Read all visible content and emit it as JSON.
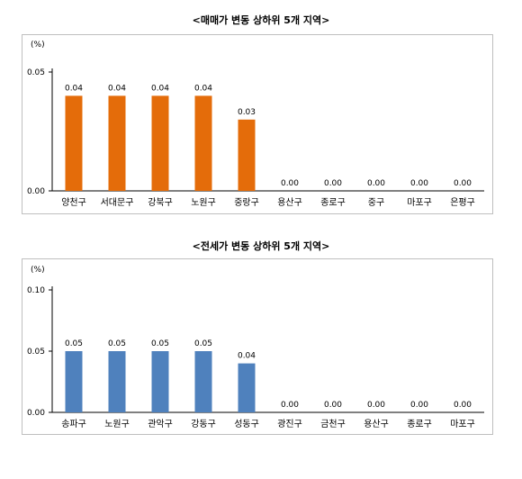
{
  "chart_data": [
    {
      "type": "bar",
      "title": "<매매가 변동 상하위 5개 지역>",
      "ylabel": "(%)",
      "ylim": [
        0,
        0.05
      ],
      "yticks": [
        "0.00",
        "0.05"
      ],
      "bar_color": "#e46c0a",
      "categories": [
        "양천구",
        "서대문구",
        "강북구",
        "노원구",
        "중랑구",
        "용산구",
        "종로구",
        "중구",
        "마포구",
        "은평구"
      ],
      "values": [
        0.04,
        0.04,
        0.04,
        0.04,
        0.03,
        0.0,
        0.0,
        0.0,
        0.0,
        0.0
      ],
      "labels": [
        "0.04",
        "0.04",
        "0.04",
        "0.04",
        "0.03",
        "0.00",
        "0.00",
        "0.00",
        "0.00",
        "0.00"
      ]
    },
    {
      "type": "bar",
      "title": "<전세가 변동 상하위 5개 지역>",
      "ylabel": "(%)",
      "ylim": [
        0,
        0.1
      ],
      "yticks": [
        "0.00",
        "0.05",
        "0.10"
      ],
      "bar_color": "#4f81bd",
      "categories": [
        "송파구",
        "노원구",
        "관악구",
        "강동구",
        "성동구",
        "광진구",
        "금천구",
        "용산구",
        "종로구",
        "마포구"
      ],
      "values": [
        0.05,
        0.05,
        0.05,
        0.05,
        0.04,
        0.0,
        0.0,
        0.0,
        0.0,
        0.0
      ],
      "labels": [
        "0.05",
        "0.05",
        "0.05",
        "0.05",
        "0.04",
        "0.00",
        "0.00",
        "0.00",
        "0.00",
        "0.00"
      ]
    }
  ]
}
